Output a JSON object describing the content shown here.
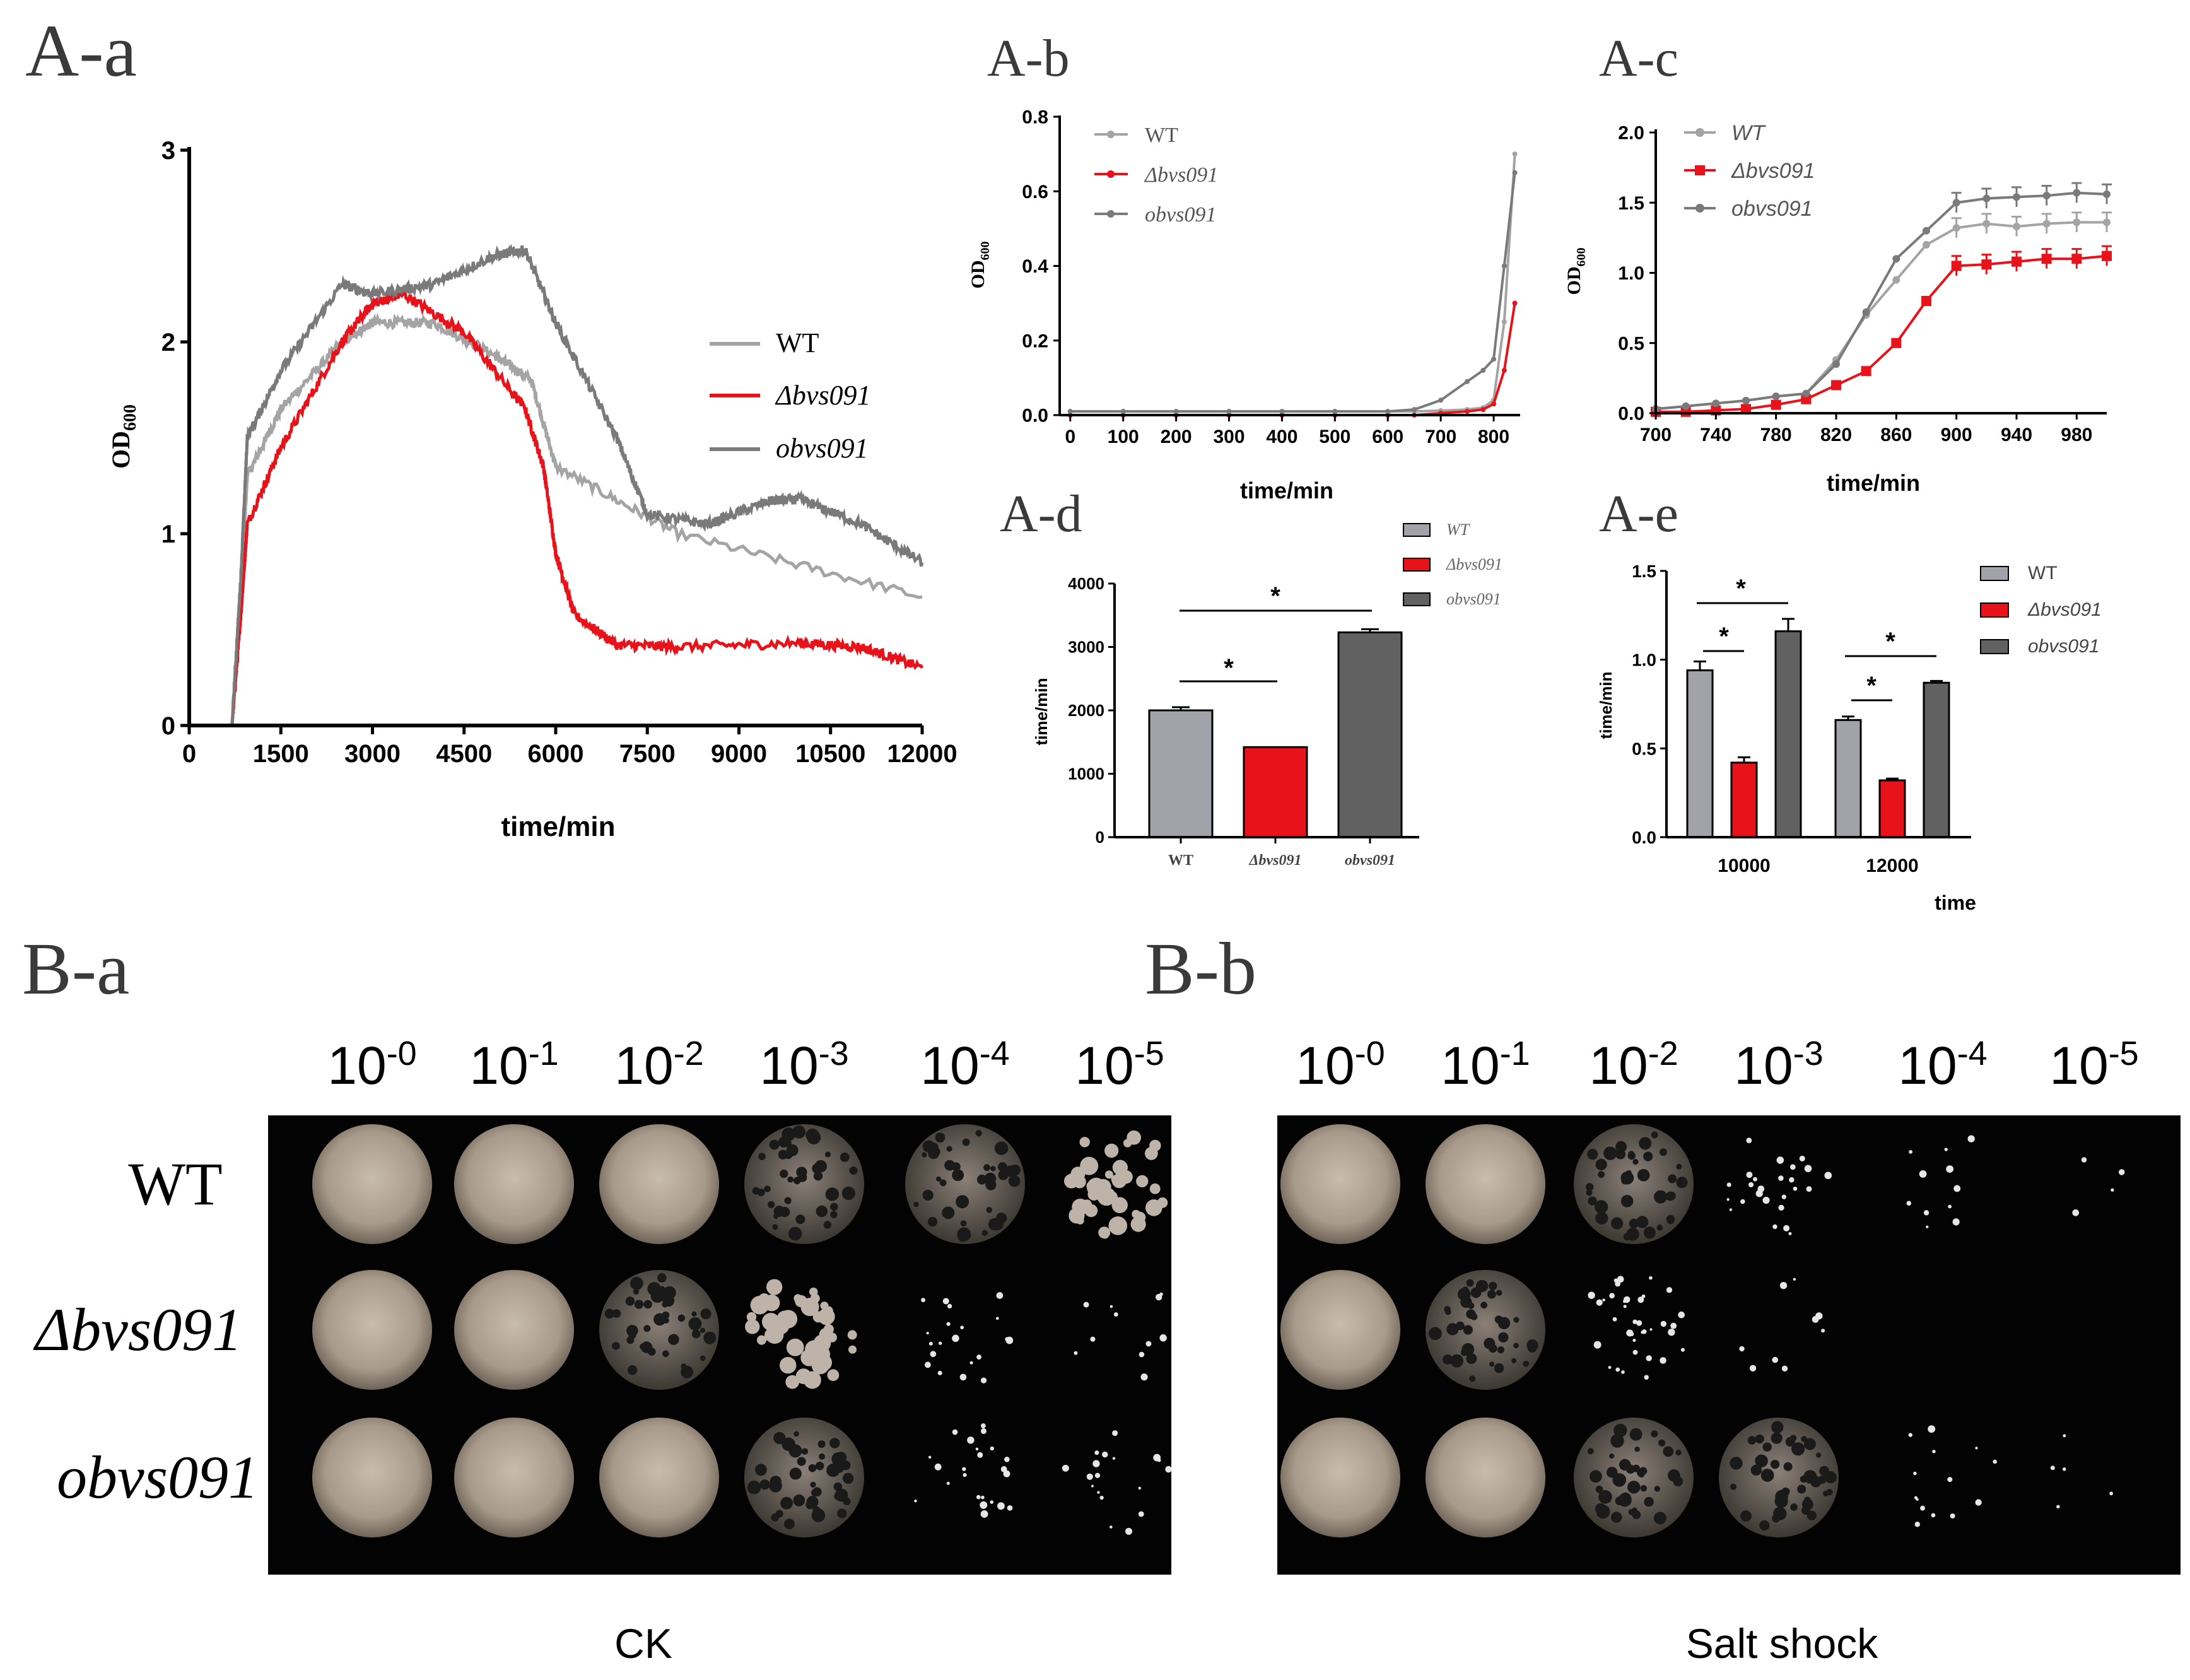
{
  "colors": {
    "wt": "#a4a4a4",
    "mutant": "#e8121a",
    "complement": "#7a7a7a",
    "plate_bg": "#030303",
    "wt_bar": "#a2a2aa",
    "comp_bar": "#616161",
    "axis": "#000000"
  },
  "labels": {
    "Aa": "A-a",
    "Ab": "A-b",
    "Ac": "A-c",
    "Ad": "A-d",
    "Ae": "A-e",
    "Ba": "B-a",
    "Bb": "B-b",
    "od_label": "OD",
    "od_sub": "600",
    "time_label": "time/min",
    "time_label_short": "time",
    "ck": "CK",
    "salt": "Salt shock",
    "star": "*"
  },
  "legend": {
    "wt": "WT",
    "mutant": "Δbvs091",
    "complement": "obvs091"
  },
  "dilutions": [
    "10-0",
    "10-1",
    "10-2",
    "10-3",
    "10-4",
    "10-5"
  ],
  "strains": [
    "WT",
    "Δbvs091",
    "obvs091"
  ],
  "chart_data": [
    {
      "id": "A-a",
      "type": "line",
      "xlabel": "time/min",
      "ylabel": "OD600",
      "xlim": [
        0,
        12000
      ],
      "ylim": [
        0,
        3
      ],
      "xticks": [
        0,
        1500,
        3000,
        4500,
        6000,
        7500,
        9000,
        10500,
        12000
      ],
      "yticks": [
        0,
        1,
        2,
        3
      ],
      "legend_position": "right",
      "series": [
        {
          "name": "WT",
          "color": "#a4a4a4",
          "x": [
            0,
            700,
            850,
            950,
            1500,
            2500,
            3000,
            4000,
            5000,
            5600,
            6000,
            8000,
            12000
          ],
          "y": [
            0,
            0,
            0.7,
            1.3,
            1.65,
            2.0,
            2.1,
            2.1,
            1.93,
            1.8,
            1.35,
            1.0,
            0.67
          ]
        },
        {
          "name": "Δbvs091",
          "color": "#e8121a",
          "x": [
            0,
            700,
            850,
            950,
            1500,
            2500,
            3000,
            3500,
            4500,
            5500,
            5800,
            6000,
            6300,
            7000,
            8000,
            10000,
            11000,
            12000
          ],
          "y": [
            0,
            0,
            0.6,
            1.05,
            1.45,
            2.0,
            2.2,
            2.25,
            2.05,
            1.65,
            1.35,
            0.9,
            0.58,
            0.42,
            0.41,
            0.43,
            0.41,
            0.3
          ]
        },
        {
          "name": "obvs091",
          "color": "#7a7a7a",
          "x": [
            0,
            700,
            850,
            950,
            1500,
            2500,
            3000,
            4000,
            5000,
            5500,
            6000,
            7000,
            7500,
            8500,
            9500,
            10000,
            11000,
            12000
          ],
          "y": [
            0,
            0,
            0.8,
            1.5,
            1.85,
            2.3,
            2.25,
            2.3,
            2.45,
            2.48,
            2.1,
            1.5,
            1.1,
            1.05,
            1.17,
            1.18,
            1.05,
            0.85
          ]
        }
      ]
    },
    {
      "id": "A-b",
      "type": "line",
      "xlabel": "time/min",
      "ylabel": "OD600",
      "xlim": [
        -20,
        850
      ],
      "ylim": [
        0,
        0.8
      ],
      "xticks": [
        0,
        100,
        200,
        300,
        400,
        500,
        600,
        700,
        800
      ],
      "yticks": [
        0.0,
        0.2,
        0.4,
        0.6,
        0.8
      ],
      "legend_position": "top-left",
      "series": [
        {
          "name": "WT",
          "color": "#a4a4a4",
          "x": [
            0,
            100,
            200,
            300,
            400,
            500,
            600,
            650,
            700,
            750,
            780,
            800,
            820,
            840
          ],
          "y": [
            0.01,
            0.01,
            0.01,
            0.01,
            0.01,
            0.01,
            0.01,
            0.01,
            0.012,
            0.015,
            0.02,
            0.04,
            0.25,
            0.7
          ]
        },
        {
          "name": "Δbvs091",
          "color": "#e8121a",
          "x": [
            0,
            100,
            200,
            300,
            400,
            500,
            600,
            650,
            700,
            750,
            780,
            800,
            820,
            840
          ],
          "y": [
            0.0,
            0.0,
            0.0,
            0.0,
            0.0,
            0.0,
            0.0,
            0.0,
            0.005,
            0.01,
            0.015,
            0.03,
            0.12,
            0.3
          ]
        },
        {
          "name": "obvs091",
          "color": "#7a7a7a",
          "x": [
            0,
            100,
            200,
            300,
            400,
            500,
            600,
            650,
            700,
            750,
            780,
            800,
            820,
            840
          ],
          "y": [
            0.01,
            0.01,
            0.01,
            0.01,
            0.01,
            0.01,
            0.01,
            0.015,
            0.04,
            0.09,
            0.12,
            0.15,
            0.4,
            0.65
          ]
        }
      ]
    },
    {
      "id": "A-c",
      "type": "line",
      "xlabel": "time/min",
      "ylabel": "OD600",
      "xlim": [
        700,
        1000
      ],
      "ylim": [
        0,
        2.0
      ],
      "xticks": [
        700,
        740,
        780,
        820,
        860,
        900,
        940,
        980
      ],
      "yticks": [
        0.0,
        0.5,
        1.0,
        1.5,
        2.0
      ],
      "legend_position": "top-left",
      "series": [
        {
          "name": "WT",
          "color": "#a4a4a4",
          "x": [
            700,
            720,
            740,
            760,
            780,
            800,
            820,
            840,
            860,
            880,
            900,
            920,
            940,
            960,
            980,
            1000
          ],
          "y": [
            0.03,
            0.05,
            0.07,
            0.09,
            0.12,
            0.14,
            0.38,
            0.7,
            0.95,
            1.2,
            1.32,
            1.35,
            1.33,
            1.35,
            1.36,
            1.36
          ]
        },
        {
          "name": "Δbvs091",
          "color": "#e8121a",
          "x": [
            700,
            720,
            740,
            760,
            780,
            800,
            820,
            840,
            860,
            880,
            900,
            920,
            940,
            960,
            980,
            1000
          ],
          "y": [
            0.01,
            0.01,
            0.02,
            0.03,
            0.06,
            0.1,
            0.2,
            0.3,
            0.5,
            0.8,
            1.05,
            1.06,
            1.08,
            1.1,
            1.1,
            1.12
          ]
        },
        {
          "name": "obvs091",
          "color": "#7a7a7a",
          "x": [
            700,
            720,
            740,
            760,
            780,
            800,
            820,
            840,
            860,
            880,
            900,
            920,
            940,
            960,
            980,
            1000
          ],
          "y": [
            0.03,
            0.05,
            0.07,
            0.09,
            0.12,
            0.14,
            0.35,
            0.72,
            1.1,
            1.3,
            1.5,
            1.53,
            1.54,
            1.55,
            1.57,
            1.56
          ]
        }
      ]
    },
    {
      "id": "A-d",
      "type": "bar",
      "categories": [
        "WT",
        "Δbvs091",
        "obvs091"
      ],
      "ylabel": "time/min",
      "ylim": [
        0,
        4000
      ],
      "yticks": [
        0,
        1000,
        2000,
        3000,
        4000
      ],
      "values": [
        2000,
        1420,
        3230
      ],
      "errors": [
        50,
        0,
        50
      ],
      "legend_position": "top-right",
      "significance": [
        [
          "WT",
          "Δbvs091"
        ],
        [
          "WT",
          "obvs091"
        ]
      ]
    },
    {
      "id": "A-e",
      "type": "bar",
      "categories": [
        "10000",
        "12000"
      ],
      "xlabel": "time",
      "ylabel": "time/min",
      "ylim": [
        0,
        1.5
      ],
      "yticks": [
        0.0,
        0.5,
        1.0,
        1.5
      ],
      "legend_position": "top-right",
      "series": [
        {
          "name": "WT",
          "values": [
            0.94,
            0.66
          ],
          "errors": [
            0.05,
            0.02
          ]
        },
        {
          "name": "Δbvs091",
          "values": [
            0.42,
            0.32
          ],
          "errors": [
            0.03,
            0.01
          ]
        },
        {
          "name": "obvs091",
          "values": [
            1.16,
            0.87
          ],
          "errors": [
            0.07,
            0.01
          ]
        }
      ],
      "significance": [
        [
          "10000",
          "WT",
          "Δbvs091"
        ],
        [
          "10000",
          "WT",
          "obvs091"
        ],
        [
          "12000",
          "WT",
          "Δbvs091"
        ],
        [
          "12000",
          "WT",
          "obvs091"
        ]
      ]
    }
  ],
  "plates": {
    "ck_growth": [
      [
        1,
        1,
        0.95,
        0.78,
        0.62,
        0.45
      ],
      [
        1,
        0.92,
        0.72,
        0.48,
        0.22,
        0.12
      ],
      [
        1,
        1,
        0.92,
        0.7,
        0.25,
        0.2
      ]
    ],
    "salt_growth": [
      [
        1,
        0.9,
        0.6,
        0.28,
        0.12,
        0.04
      ],
      [
        0.85,
        0.6,
        0.4,
        0.1,
        0.0,
        0.0
      ],
      [
        1,
        0.9,
        0.7,
        0.55,
        0.15,
        0.06
      ]
    ]
  }
}
